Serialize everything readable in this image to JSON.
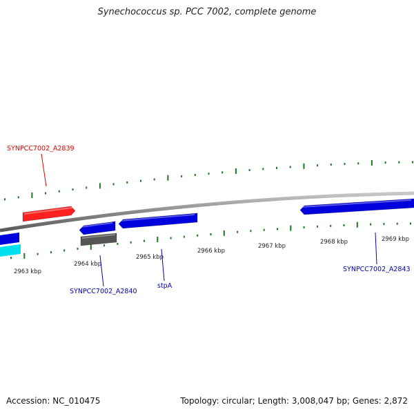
{
  "title": "Synechococcus sp. PCC 7002, complete genome",
  "footer": {
    "accession": "Accession: NC_010475",
    "summary": "Topology: circular; Length: 3,008,047 bp; Genes: 2,872"
  },
  "ruler": {
    "unit": "kbp",
    "ticks": [
      {
        "kbp": 2963,
        "label": "2963 kbp"
      },
      {
        "kbp": 2964,
        "label": "2964 kbp"
      },
      {
        "kbp": 2965,
        "label": "2965 kbp"
      },
      {
        "kbp": 2966,
        "label": "2966 kbp"
      },
      {
        "kbp": 2967,
        "label": "2967 kbp"
      },
      {
        "kbp": 2968,
        "label": "2968 kbp"
      },
      {
        "kbp": 2969,
        "label": "2969 kbp"
      }
    ]
  },
  "genes": [
    {
      "name": "SYNPCC7002_A2839",
      "strand": "+",
      "color": "#ff2020",
      "labeled": true
    },
    {
      "name": "SYNPCC7002_A2840",
      "strand": "-",
      "color": "#0000dd",
      "labeled": true
    },
    {
      "name": "stpA",
      "strand": "-",
      "color": "#0000dd",
      "labeled": true
    },
    {
      "name": "SYNPCC7002_A2843",
      "strand": "-",
      "color": "#0000dd",
      "labeled": true
    },
    {
      "name": "",
      "strand": "-",
      "color": "#555555",
      "labeled": false
    },
    {
      "name": "",
      "strand": "-",
      "color": "#0000dd",
      "labeled": false
    },
    {
      "name": "",
      "strand": "-",
      "color": "#00e0ee",
      "labeled": false
    }
  ],
  "colors": {
    "backbone": "#8a8a8a",
    "ticks": "#1a7a1a",
    "forward_label": "#dd0000",
    "reverse_label": "#0000aa"
  }
}
